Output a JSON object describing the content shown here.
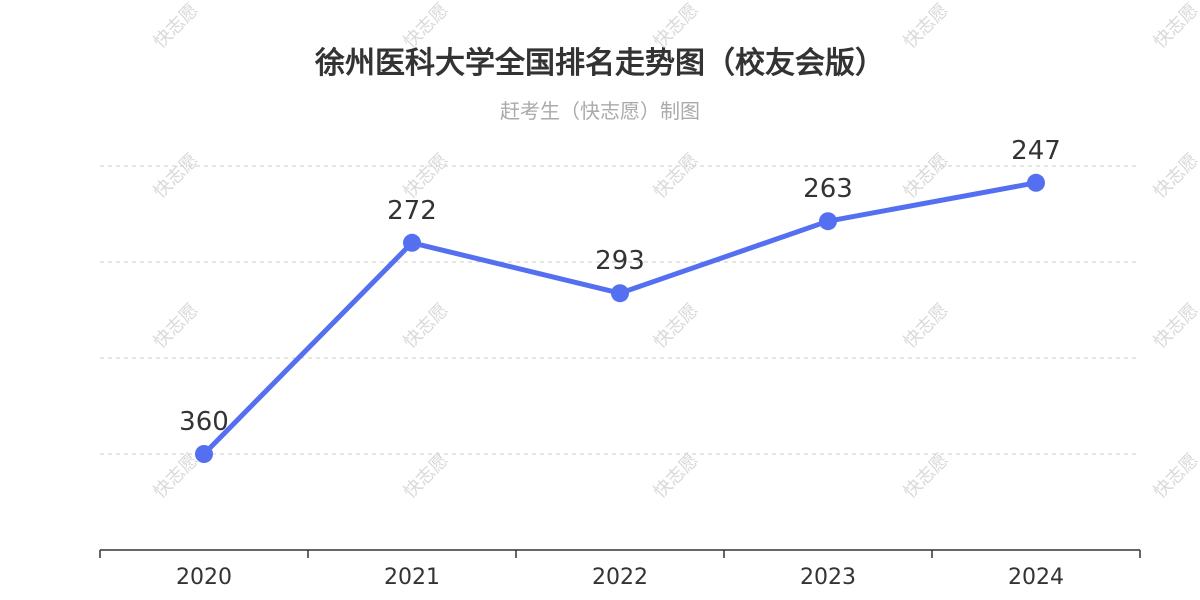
{
  "title": "徐州医科大学全国排名走势图（校友会版）",
  "subtitle": "赶考生（快志愿）制图",
  "watermark_text": "快志愿",
  "colors": {
    "line": "#5470f0",
    "grid": "#cccccc",
    "axis": "#333333",
    "text": "#333333",
    "subtitle": "#aaaaaa"
  },
  "chart_data": {
    "type": "line",
    "categories": [
      "2020",
      "2021",
      "2022",
      "2023",
      "2024"
    ],
    "series": [
      {
        "values": [
          360,
          272,
          293,
          263,
          247
        ]
      }
    ],
    "y_inverse": true,
    "ylim": [
      220,
      400
    ],
    "grid": true,
    "y_axis_labels_shown": false,
    "data_labels": true
  }
}
